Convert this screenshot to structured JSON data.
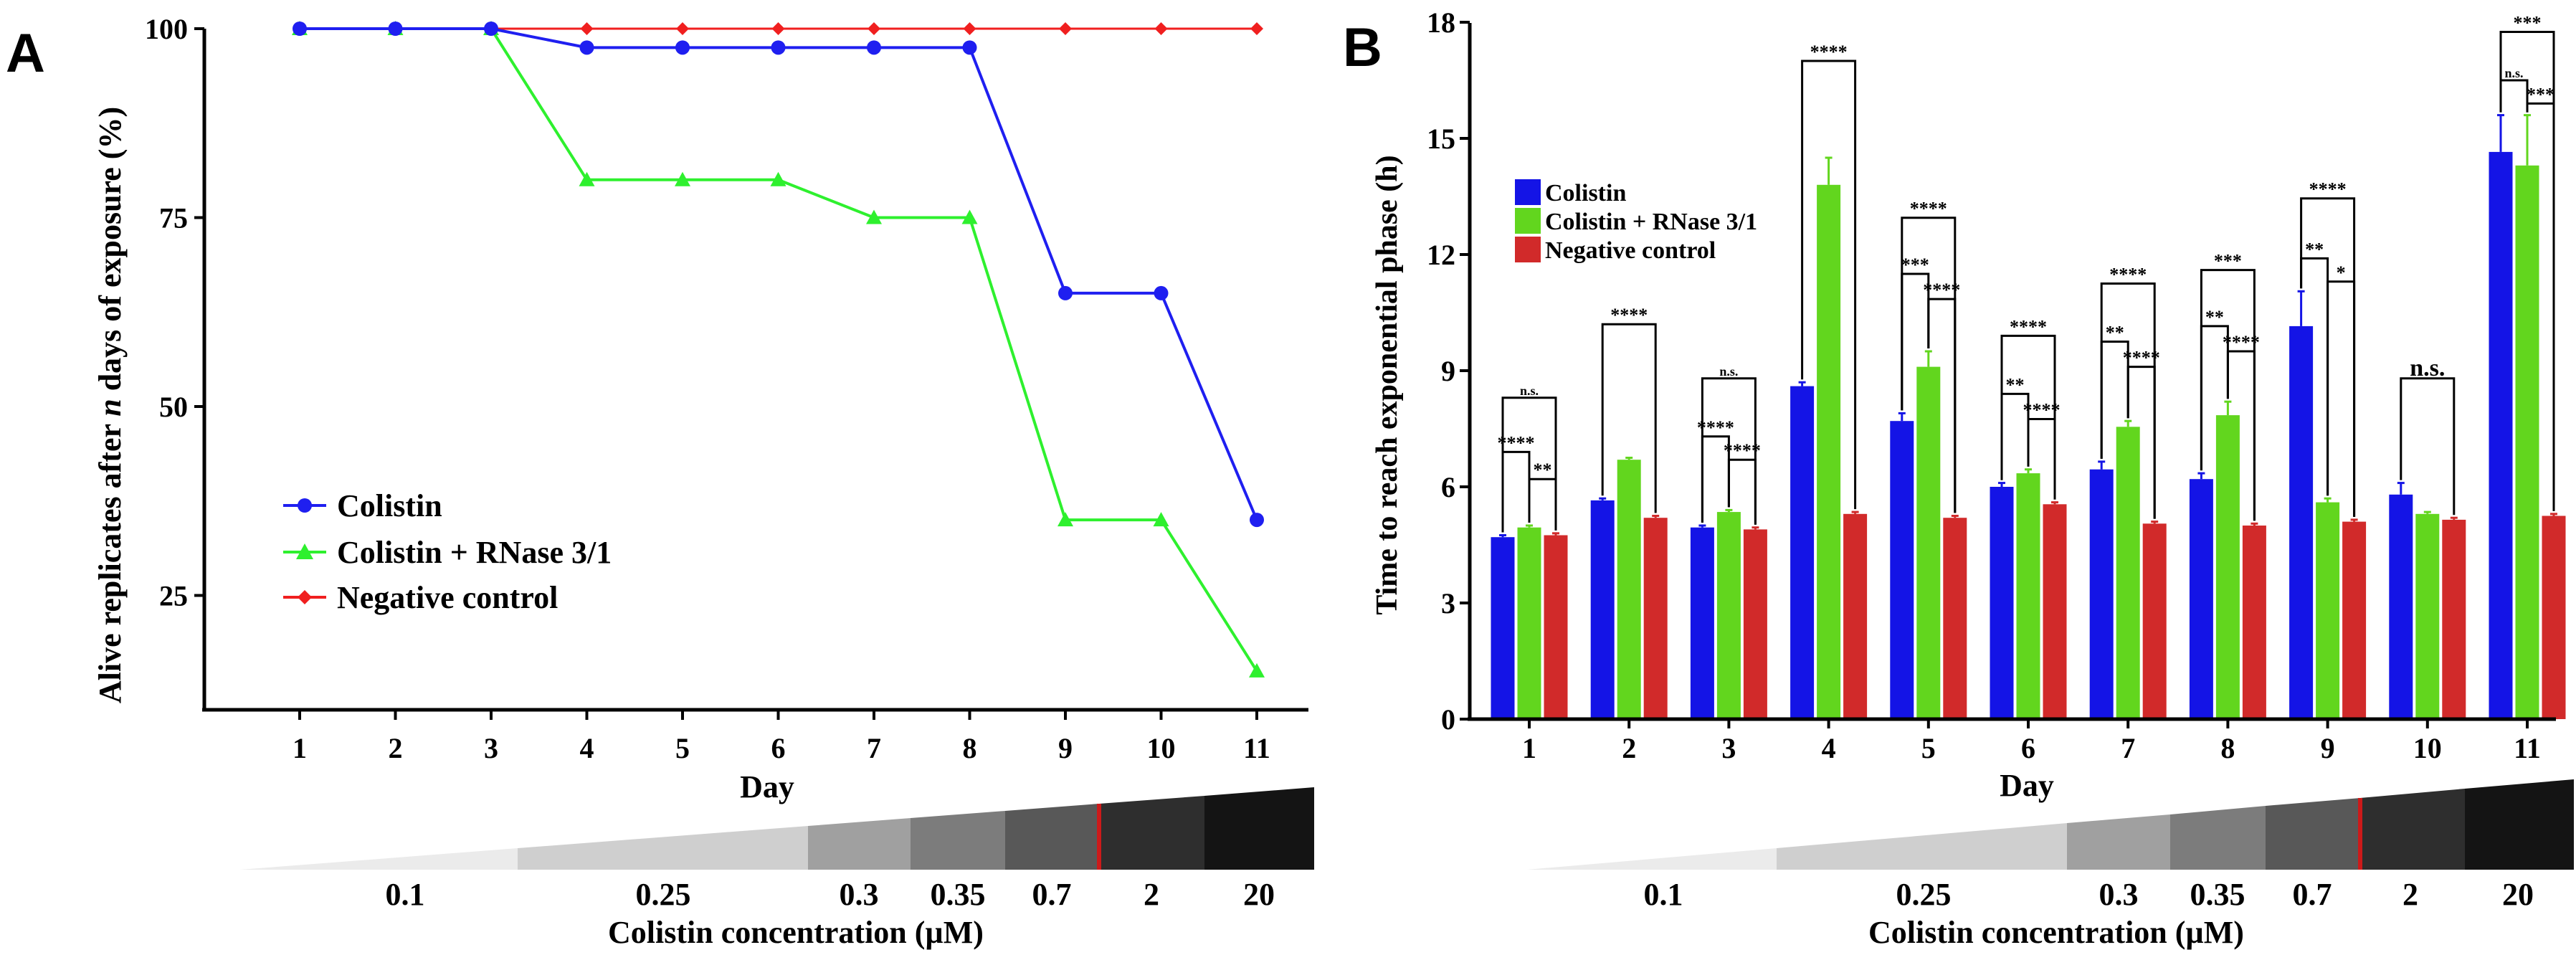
{
  "panel_a": {
    "letter": "A",
    "chart_data": {
      "type": "line",
      "title": "",
      "xlabel": "Day",
      "ylabel_pre": "Alive replicates after ",
      "ylabel_n": "n",
      "ylabel_post": " days of exposure (%)",
      "categories": [
        "1",
        "2",
        "3",
        "4",
        "5",
        "6",
        "7",
        "8",
        "9",
        "10",
        "11"
      ],
      "yticks": [
        "25",
        "50",
        "75",
        "100"
      ],
      "ylim": [
        10,
        100
      ],
      "legend_position": "lower-left",
      "series": [
        {
          "name": "Colistin",
          "color": "#1f1ff0",
          "marker": "circle",
          "values": [
            100,
            100,
            100,
            97.5,
            97.5,
            97.5,
            97.5,
            97.5,
            65,
            65,
            35
          ]
        },
        {
          "name": "Colistin + RNase 3/1",
          "color": "#2ef02e",
          "marker": "triangle",
          "values": [
            100,
            100,
            100,
            80,
            80,
            80,
            75,
            75,
            35,
            35,
            15
          ]
        },
        {
          "name": "Negative control",
          "color": "#f01f1f",
          "marker": "diamond",
          "values": [
            100,
            100,
            100,
            100,
            100,
            100,
            100,
            100,
            100,
            100,
            100
          ]
        }
      ]
    },
    "concentration_bar": {
      "labels": [
        "0.1",
        "0.25",
        "0.3",
        "0.35",
        "0.7",
        "2",
        "20"
      ],
      "title": "Colistin concentration (µM)"
    }
  },
  "panel_b": {
    "letter": "B",
    "chart_data": {
      "type": "bar",
      "title": "",
      "xlabel": "Day",
      "ylabel": "Time to reach exponential phase (h)",
      "categories": [
        "1",
        "2",
        "3",
        "4",
        "5",
        "6",
        "7",
        "8",
        "9",
        "10",
        "11"
      ],
      "yticks": [
        "0",
        "3",
        "6",
        "9",
        "12",
        "15",
        "18"
      ],
      "ylim": [
        0,
        18
      ],
      "legend_position": "upper-left",
      "series": [
        {
          "name": "Colistin",
          "color": "#1414e6",
          "values": [
            4.7,
            5.65,
            4.95,
            8.6,
            7.7,
            6.0,
            6.45,
            6.2,
            10.15,
            5.8,
            14.65
          ],
          "errors": [
            0.05,
            0.05,
            0.05,
            0.1,
            0.2,
            0.1,
            0.2,
            0.15,
            0.9,
            0.3,
            0.95
          ]
        },
        {
          "name": "Colistin + RNase 3/1",
          "color": "#62d61e",
          "values": [
            4.95,
            6.7,
            5.35,
            13.8,
            9.1,
            6.35,
            7.55,
            7.85,
            5.6,
            5.3,
            14.3
          ],
          "errors": [
            0.05,
            0.05,
            0.05,
            0.7,
            0.4,
            0.1,
            0.15,
            0.35,
            0.1,
            0.05,
            1.3
          ]
        },
        {
          "name": "Negative control",
          "color": "#d12a2a",
          "values": [
            4.75,
            5.2,
            4.9,
            5.3,
            5.2,
            5.55,
            5.05,
            5.0,
            5.1,
            5.15,
            5.25
          ],
          "errors": [
            0.05,
            0.05,
            0.05,
            0.05,
            0.05,
            0.05,
            0.05,
            0.05,
            0.05,
            0.05,
            0.05
          ]
        }
      ],
      "significance": [
        {
          "day": "1",
          "outer": {
            "y": 8.3,
            "label": "n.s."
          },
          "cb": {
            "y": 6.9,
            "label": "****"
          },
          "bc": {
            "y": 6.2,
            "label": "**"
          }
        },
        {
          "day": "2",
          "outer": {
            "y": 10.2,
            "label": "****"
          }
        },
        {
          "day": "3",
          "outer": {
            "y": 8.8,
            "label": "n.s."
          },
          "cb": {
            "y": 7.3,
            "label": "****"
          },
          "bc": {
            "y": 6.7,
            "label": "****"
          }
        },
        {
          "day": "4",
          "outer": {
            "y": 17.0,
            "label": "****"
          }
        },
        {
          "day": "5",
          "outer": {
            "y": 12.95,
            "label": "****"
          },
          "cb": {
            "y": 11.5,
            "label": "***"
          },
          "bc": {
            "y": 10.85,
            "label": "****"
          }
        },
        {
          "day": "6",
          "outer": {
            "y": 9.9,
            "label": "****"
          },
          "cb": {
            "y": 8.4,
            "label": "**"
          },
          "bc": {
            "y": 7.75,
            "label": "****"
          }
        },
        {
          "day": "7",
          "outer": {
            "y": 11.25,
            "label": "****"
          },
          "cb": {
            "y": 9.75,
            "label": "**"
          },
          "bc": {
            "y": 9.1,
            "label": "****"
          }
        },
        {
          "day": "8",
          "outer": {
            "y": 11.6,
            "label": "***"
          },
          "cb": {
            "y": 10.15,
            "label": "**"
          },
          "bc": {
            "y": 9.5,
            "label": "****"
          }
        },
        {
          "day": "9",
          "outer": {
            "y": 13.45,
            "label": "****"
          },
          "cb": {
            "y": 11.9,
            "label": "**"
          },
          "bc": {
            "y": 11.3,
            "label": "*"
          }
        },
        {
          "day": "10",
          "outer": {
            "y": 8.8,
            "label": "n.s."
          }
        },
        {
          "day": "11",
          "outer": {
            "y": 17.75,
            "label": "***"
          },
          "cb": {
            "y": 16.5,
            "label": "n.s."
          },
          "bc": {
            "y": 15.9,
            "label": "***"
          }
        }
      ]
    },
    "concentration_bar": {
      "labels": [
        "0.1",
        "0.25",
        "0.3",
        "0.35",
        "0.7",
        "2",
        "20"
      ],
      "title": "Colistin concentration (µM)"
    }
  },
  "gradient_colors": [
    "#ebebeb",
    "#cfcfcf",
    "#a0a0a0",
    "#7c7c7c",
    "#585858",
    "#2e2e2e",
    "#141414"
  ],
  "marker_color": "#cc1a1a"
}
